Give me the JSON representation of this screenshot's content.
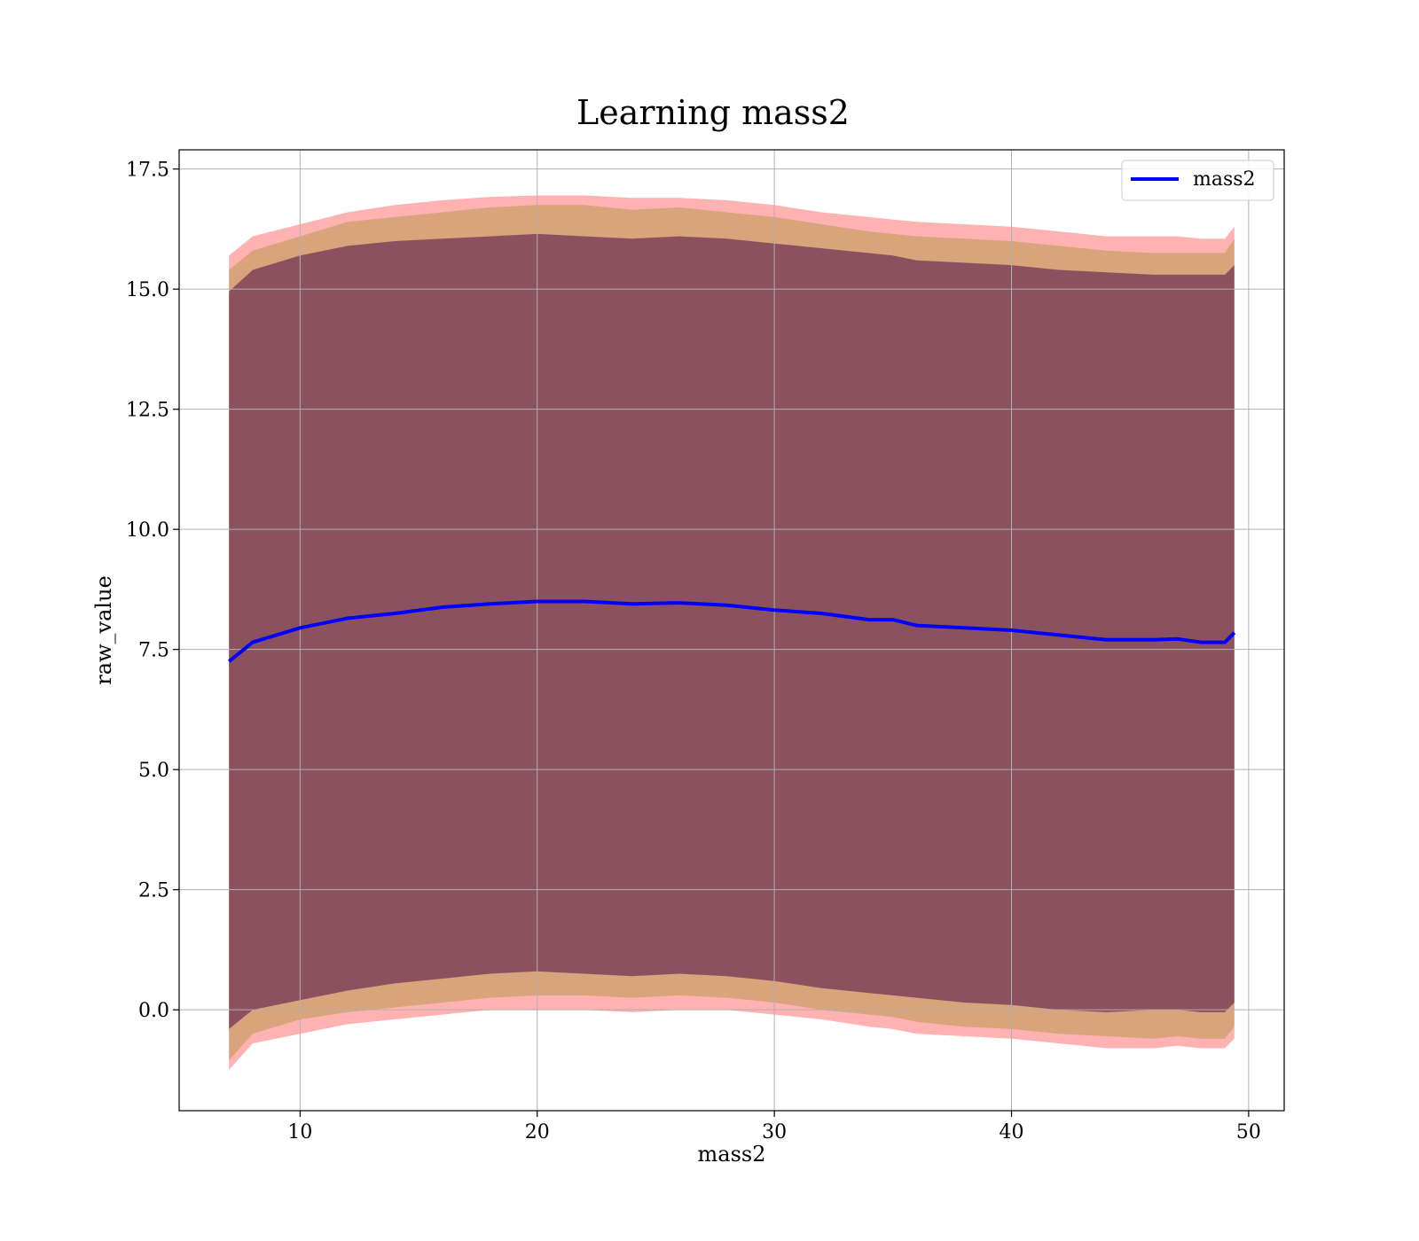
{
  "chart_data": {
    "type": "area",
    "title": "Learning mass2",
    "xlabel": "mass2",
    "ylabel": "raw_value",
    "xlim": [
      4.9,
      51.5
    ],
    "ylim": [
      -2.1,
      17.9
    ],
    "xticks": [
      10,
      20,
      30,
      40,
      50
    ],
    "xtick_labels": [
      "10",
      "20",
      "30",
      "40",
      "50"
    ],
    "yticks": [
      0.0,
      2.5,
      5.0,
      7.5,
      10.0,
      12.5,
      15.0,
      17.5
    ],
    "ytick_labels": [
      "0.0",
      "2.5",
      "5.0",
      "7.5",
      "10.0",
      "12.5",
      "15.0",
      "17.5"
    ],
    "grid": true,
    "legend_position": "top-right",
    "legend": [
      "mass2"
    ],
    "x": [
      7,
      8,
      10,
      12,
      14,
      16,
      18,
      20,
      22,
      24,
      26,
      28,
      30,
      32,
      34,
      35,
      36,
      38,
      40,
      42,
      44,
      46,
      47,
      48,
      49,
      49.4
    ],
    "series": [
      {
        "name": "mass2",
        "color": "#0000ff",
        "values": [
          7.25,
          7.65,
          7.95,
          8.15,
          8.25,
          8.38,
          8.45,
          8.5,
          8.5,
          8.45,
          8.47,
          8.42,
          8.32,
          8.25,
          8.12,
          8.12,
          8.0,
          7.95,
          7.9,
          7.8,
          7.7,
          7.7,
          7.72,
          7.65,
          7.65,
          7.85
        ]
      }
    ],
    "bands": [
      {
        "color": "#ff0000",
        "opacity": 0.3,
        "upper": [
          15.7,
          16.1,
          16.35,
          16.6,
          16.75,
          16.85,
          16.92,
          16.95,
          16.95,
          16.9,
          16.9,
          16.85,
          16.75,
          16.6,
          16.5,
          16.45,
          16.4,
          16.35,
          16.3,
          16.2,
          16.1,
          16.1,
          16.1,
          16.05,
          16.05,
          16.3
        ],
        "lower": [
          -1.25,
          -0.7,
          -0.5,
          -0.3,
          -0.2,
          -0.1,
          0.0,
          0.0,
          0.0,
          -0.05,
          0.0,
          0.0,
          -0.1,
          -0.2,
          -0.35,
          -0.4,
          -0.5,
          -0.55,
          -0.6,
          -0.7,
          -0.8,
          -0.8,
          -0.75,
          -0.8,
          -0.8,
          -0.6
        ]
      },
      {
        "color": "#808000",
        "opacity": 0.3,
        "upper": [
          15.4,
          15.8,
          16.1,
          16.4,
          16.5,
          16.6,
          16.7,
          16.75,
          16.75,
          16.65,
          16.7,
          16.6,
          16.5,
          16.35,
          16.2,
          16.15,
          16.1,
          16.05,
          16.0,
          15.9,
          15.8,
          15.75,
          15.75,
          15.75,
          15.75,
          16.05
        ],
        "lower": [
          -1.05,
          -0.5,
          -0.2,
          -0.05,
          0.05,
          0.15,
          0.25,
          0.3,
          0.3,
          0.25,
          0.3,
          0.25,
          0.15,
          0.0,
          -0.1,
          -0.15,
          -0.25,
          -0.35,
          -0.4,
          -0.5,
          -0.55,
          -0.6,
          -0.55,
          -0.6,
          -0.6,
          -0.35
        ]
      },
      {
        "color": "#400040",
        "opacity": 0.5,
        "upper": [
          14.95,
          15.4,
          15.7,
          15.9,
          16.0,
          16.05,
          16.1,
          16.15,
          16.1,
          16.05,
          16.1,
          16.05,
          15.95,
          15.85,
          15.75,
          15.7,
          15.6,
          15.55,
          15.5,
          15.4,
          15.35,
          15.3,
          15.3,
          15.3,
          15.3,
          15.5
        ],
        "lower": [
          -0.4,
          0.0,
          0.2,
          0.4,
          0.55,
          0.65,
          0.75,
          0.8,
          0.75,
          0.7,
          0.75,
          0.7,
          0.6,
          0.45,
          0.35,
          0.3,
          0.25,
          0.15,
          0.1,
          0.0,
          -0.05,
          0.0,
          0.0,
          -0.05,
          -0.05,
          0.15
        ]
      }
    ]
  }
}
